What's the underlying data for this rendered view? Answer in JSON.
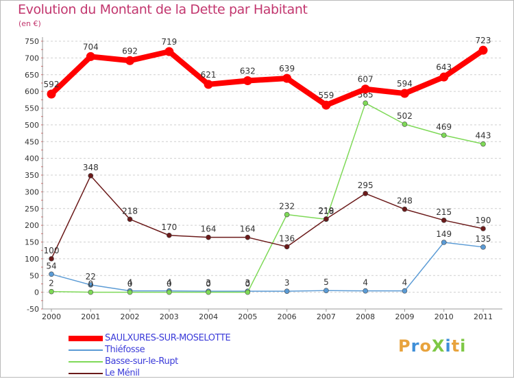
{
  "title": "Evolution du Montant de la Dette par Habitant",
  "subtitle": "(en €)",
  "chart_data": {
    "type": "line",
    "title": "Evolution du Montant de la Dette par Habitant",
    "subtitle": "(en €)",
    "xlabel": "",
    "ylabel": "",
    "x": [
      "2000",
      "2001",
      "2002",
      "2003",
      "2004",
      "2005",
      "2006",
      "2007",
      "2008",
      "2009",
      "2010",
      "2011"
    ],
    "ylim": [
      -50,
      750
    ],
    "yticks": [
      -50,
      0,
      50,
      100,
      150,
      200,
      250,
      300,
      350,
      400,
      450,
      500,
      550,
      600,
      650,
      700,
      750
    ],
    "grid": "horizontal",
    "legend_position": "bottom-left",
    "series": [
      {
        "name": "SAULXURES-SUR-MOSELOTTE",
        "color": "#ff0000",
        "emphasis": true,
        "values": [
          592,
          704,
          692,
          719,
          621,
          632,
          639,
          559,
          607,
          594,
          643,
          723
        ]
      },
      {
        "name": "Thiéfosse",
        "color": "#5b9bd5",
        "values": [
          54,
          22,
          4,
          4,
          3,
          3,
          3,
          5,
          4,
          4,
          149,
          135
        ]
      },
      {
        "name": "Basse-sur-le-Rupt",
        "color": "#7ed957",
        "values": [
          2,
          0,
          0,
          0,
          0,
          0,
          232,
          218,
          565,
          502,
          469,
          443
        ]
      },
      {
        "name": "Le Ménil",
        "color": "#6b1a1a",
        "values": [
          100,
          348,
          218,
          170,
          164,
          164,
          136,
          219,
          295,
          248,
          215,
          190
        ]
      }
    ]
  },
  "logo": {
    "text": "ProXiti",
    "colors": [
      "#e8a33d",
      "#3f8fd8",
      "#e8a33d",
      "#7ec845",
      "#3f8fd8",
      "#e8a33d",
      "#7ec845"
    ]
  }
}
